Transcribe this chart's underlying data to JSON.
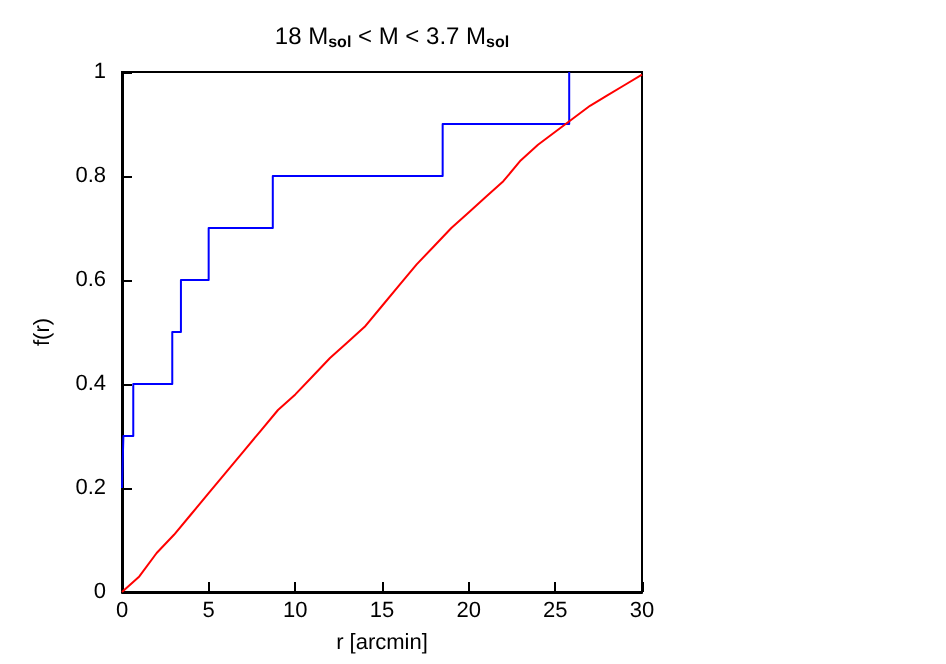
{
  "chart_data": {
    "type": "step",
    "title": "18 M$_{sol}$ < M < 3.7 M$_{sol}$",
    "xlabel": "r [arcmin]",
    "ylabel": "f(r)",
    "xlim": [
      0,
      30
    ],
    "xticks": [
      0,
      5,
      10,
      15,
      20,
      25,
      30
    ],
    "ylim": [
      0,
      1
    ],
    "yticks": [
      0,
      0.2,
      0.4,
      0.6,
      0.8,
      1
    ],
    "grid": false,
    "series": [
      {
        "color": "#0000ff",
        "x": [
          0,
          0.08,
          0.65,
          2.9,
          3.4,
          5.0,
          8.7,
          18.5,
          25.8
        ],
        "values": [
          0.2,
          0.3,
          0.4,
          0.5,
          0.6,
          0.7,
          0.8,
          0.9,
          1.0
        ]
      },
      {
        "type": "line",
        "color": "#ff0000",
        "x": [
          0,
          1,
          2,
          3,
          4,
          5,
          6,
          7,
          8,
          9,
          10,
          11,
          12,
          13,
          14,
          15,
          16,
          17,
          18,
          19,
          20,
          21,
          22,
          23,
          24,
          25,
          26,
          27,
          28,
          29,
          30
        ],
        "values": [
          0,
          0.03,
          0.075,
          0.11,
          0.15,
          0.19,
          0.23,
          0.27,
          0.31,
          0.35,
          0.38,
          0.415,
          0.45,
          0.48,
          0.51,
          0.55,
          0.59,
          0.63,
          0.665,
          0.7,
          0.73,
          0.76,
          0.79,
          0.83,
          0.86,
          0.885,
          0.91,
          0.935,
          0.955,
          0.975,
          0.995
        ]
      }
    ]
  }
}
